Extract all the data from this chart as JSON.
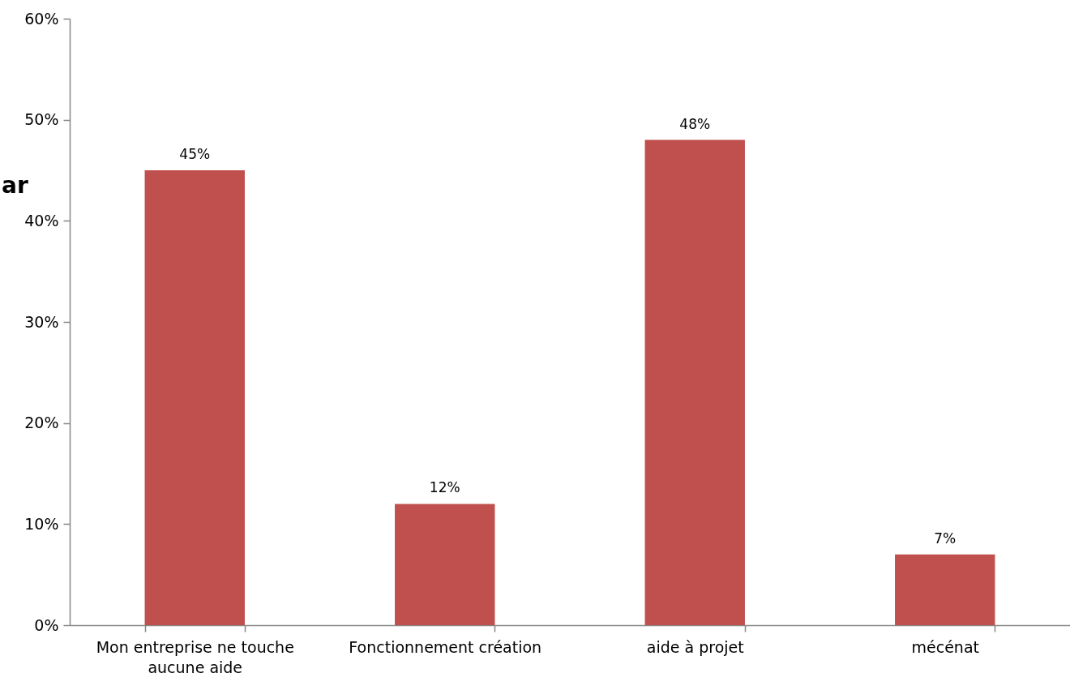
{
  "chart_data": {
    "type": "bar",
    "categories": [
      "Mon entreprise ne touche aucune aide",
      "Fonctionnement création",
      "aide à projet",
      "mécénat"
    ],
    "values": [
      45,
      12,
      48,
      7
    ],
    "value_labels": [
      "45%",
      "12%",
      "48%",
      "7%"
    ],
    "color": "#c0504d",
    "ylim": [
      0,
      60
    ],
    "yticks": [
      {
        "value": 0,
        "label": "0%"
      },
      {
        "value": 10,
        "label": "10%"
      },
      {
        "value": 20,
        "label": "20%"
      },
      {
        "value": 30,
        "label": "30%"
      },
      {
        "value": 40,
        "label": "40%"
      },
      {
        "value": 50,
        "label": "50%"
      },
      {
        "value": 60,
        "label": "60%"
      }
    ],
    "annotations": [
      "ar"
    ]
  }
}
